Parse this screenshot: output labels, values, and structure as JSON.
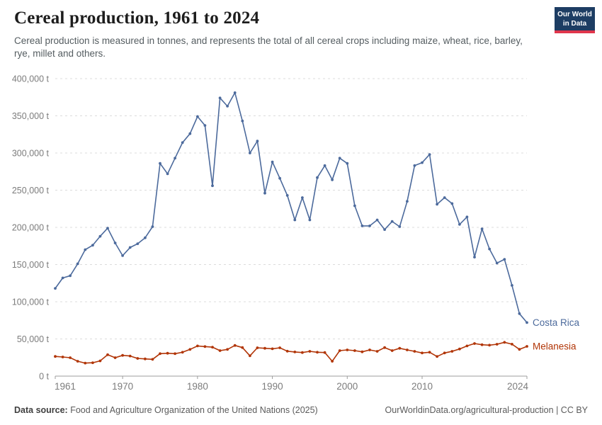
{
  "header": {
    "title": "Cereal production, 1961 to 2024",
    "subtitle": "Cereal production is measured in tonnes, and represents the total of all cereal crops including maize, wheat, rice, barley, rye, millet and others.",
    "logo": {
      "line1": "Our World",
      "line2": "in Data",
      "bg_color": "#1d3d63",
      "bar_color": "#e0364c"
    }
  },
  "chart_data": {
    "type": "line",
    "title": "Cereal production, 1961 to 2024",
    "unit": "tonnes",
    "xlim": [
      1961,
      2024
    ],
    "ylim": [
      0,
      400000
    ],
    "xticks": [
      1961,
      1970,
      1980,
      1990,
      2000,
      2010,
      2024
    ],
    "yticks": [
      0,
      50000,
      100000,
      150000,
      200000,
      250000,
      300000,
      350000,
      400000
    ],
    "ytick_suffix": " t",
    "grid": "horizontal-dashed",
    "legend": "end-of-line-labels",
    "x": [
      1961,
      1962,
      1963,
      1964,
      1965,
      1966,
      1967,
      1968,
      1969,
      1970,
      1971,
      1972,
      1973,
      1974,
      1975,
      1976,
      1977,
      1978,
      1979,
      1980,
      1981,
      1982,
      1983,
      1984,
      1985,
      1986,
      1987,
      1988,
      1989,
      1990,
      1991,
      1992,
      1993,
      1994,
      1995,
      1996,
      1997,
      1998,
      1999,
      2000,
      2001,
      2002,
      2003,
      2004,
      2005,
      2006,
      2007,
      2008,
      2009,
      2010,
      2011,
      2012,
      2013,
      2014,
      2015,
      2016,
      2017,
      2018,
      2019,
      2020,
      2021,
      2022,
      2023,
      2024
    ],
    "series": [
      {
        "name": "Costa Rica",
        "color": "#4C6A9C",
        "values": [
          118000,
          132000,
          135000,
          151000,
          170000,
          176000,
          188000,
          199000,
          179000,
          162000,
          173000,
          178000,
          186000,
          201000,
          286000,
          272000,
          293000,
          314000,
          326000,
          349000,
          337000,
          256000,
          374000,
          363000,
          381000,
          343000,
          300000,
          316000,
          246000,
          288000,
          266000,
          243000,
          210000,
          240000,
          210000,
          267000,
          283000,
          264000,
          293000,
          286000,
          229000,
          202000,
          202000,
          210000,
          197000,
          208000,
          201000,
          235000,
          283000,
          287000,
          298000,
          231000,
          240000,
          232000,
          204000,
          214000,
          160000,
          198000,
          171000,
          152000,
          157000,
          122000,
          84000,
          72000
        ]
      },
      {
        "name": "Melanesia",
        "color": "#B13507",
        "values": [
          26500,
          25700,
          24800,
          20000,
          17500,
          18000,
          20500,
          28800,
          24800,
          27900,
          27000,
          23800,
          23100,
          22600,
          30200,
          30800,
          30200,
          32100,
          35900,
          40600,
          39700,
          39000,
          34300,
          35900,
          41200,
          38400,
          27300,
          38100,
          37400,
          36800,
          38100,
          33500,
          32500,
          31700,
          33300,
          32100,
          31700,
          20000,
          34300,
          35200,
          34300,
          32700,
          35200,
          33300,
          38400,
          34300,
          37400,
          35200,
          33300,
          31100,
          32100,
          26400,
          31100,
          33300,
          36500,
          40600,
          43800,
          42200,
          41600,
          42900,
          45400,
          43000,
          36000,
          40000
        ]
      }
    ]
  },
  "footer": {
    "source_label": "Data source:",
    "source_text": " Food and Agriculture Organization of the United Nations (2025)",
    "link_text": "OurWorldinData.org/agricultural-production",
    "license": " | CC BY"
  }
}
